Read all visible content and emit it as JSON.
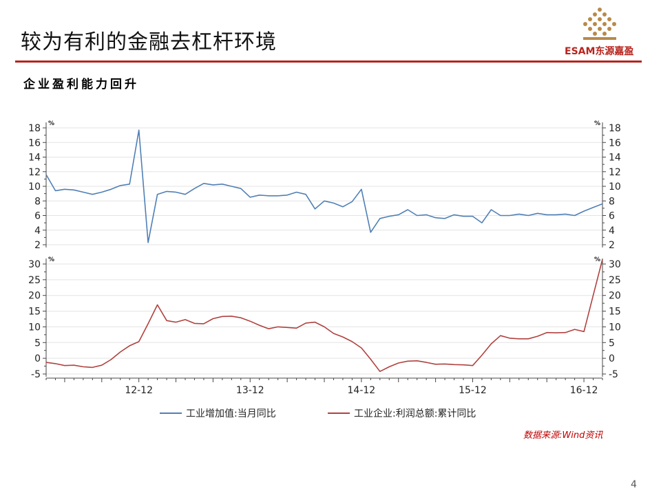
{
  "page": {
    "title": "较为有利的金融去杠杆环境",
    "subtitle": "企业盈利能力回升",
    "logo_text": "ESAM东源嘉盈",
    "source": "数据来源:Wind资讯",
    "page_number": "4",
    "accent_color": "#b8231d"
  },
  "chart_data": [
    {
      "type": "line",
      "unit_left": "%",
      "unit_right": "%",
      "ylim": [
        2,
        18
      ],
      "yticks": [
        "2",
        "4",
        "6",
        "8",
        "10",
        "12",
        "14",
        "16",
        "18"
      ],
      "x_tick_labels": [
        "12-12",
        "13-12",
        "14-12",
        "15-12",
        "16-12"
      ],
      "series": [
        {
          "name": "工业增加值:当月同比",
          "color": "#4f7fb5",
          "values": [
            11.6,
            9.4,
            9.6,
            9.5,
            9.2,
            8.9,
            9.2,
            9.6,
            10.1,
            10.3,
            17.7,
            2.3,
            8.9,
            9.3,
            9.2,
            8.9,
            9.7,
            10.4,
            10.2,
            10.3,
            10.0,
            9.7,
            8.5,
            8.8,
            8.7,
            8.7,
            8.8,
            9.2,
            8.9,
            6.9,
            8.0,
            7.7,
            7.2,
            7.9,
            9.6,
            3.7,
            5.6,
            5.9,
            6.1,
            6.8,
            6.0,
            6.1,
            5.7,
            5.6,
            6.1,
            5.9,
            5.9,
            5.0,
            6.8,
            6.0,
            6.0,
            6.2,
            6.0,
            6.3,
            6.1,
            6.1,
            6.2,
            6.0,
            6.6,
            7.1,
            7.6
          ]
        }
      ]
    },
    {
      "type": "line",
      "unit_left": "%",
      "unit_right": "%",
      "ylim": [
        -5,
        30
      ],
      "yticks": [
        "-5",
        "0",
        "5",
        "10",
        "15",
        "20",
        "25",
        "30"
      ],
      "x_tick_labels": [
        "12-12",
        "13-12",
        "14-12",
        "15-12",
        "16-12"
      ],
      "series": [
        {
          "name": "工业企业:利润总额:累计同比",
          "color": "#b0413e",
          "values": [
            -1.3,
            -1.7,
            -2.3,
            -2.2,
            -2.7,
            -2.9,
            -2.2,
            -0.4,
            2.0,
            4.0,
            5.3,
            11.0,
            17.0,
            12.0,
            11.5,
            12.3,
            11.1,
            11.0,
            12.6,
            13.3,
            13.4,
            12.9,
            11.8,
            10.5,
            9.4,
            10.0,
            9.8,
            9.6,
            11.2,
            11.5,
            10.0,
            7.9,
            6.8,
            5.3,
            3.3,
            -0.3,
            -4.2,
            -2.7,
            -1.5,
            -0.9,
            -0.8,
            -1.3,
            -1.9,
            -1.8,
            -2.0,
            -2.1,
            -2.3,
            1.0,
            4.6,
            7.2,
            6.4,
            6.2,
            6.2,
            7.0,
            8.2,
            8.1,
            8.2,
            9.2,
            8.5,
            20.0,
            31.5
          ]
        }
      ]
    }
  ]
}
